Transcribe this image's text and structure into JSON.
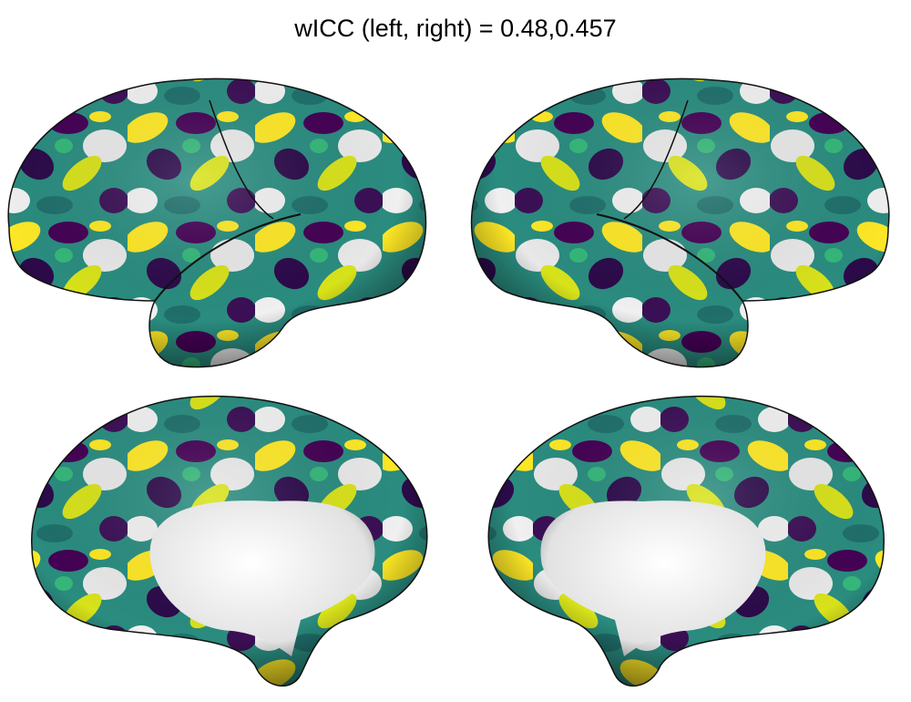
{
  "title": "wICC (left, right) = 0.48,0.457"
}
